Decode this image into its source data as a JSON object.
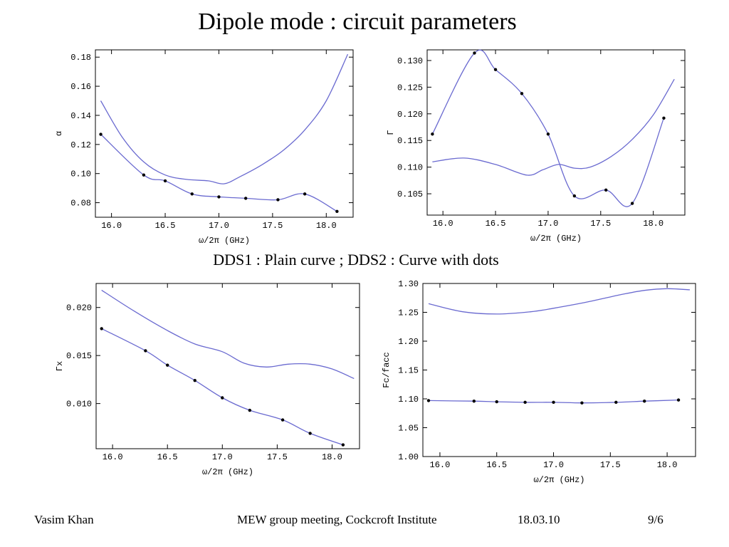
{
  "slide": {
    "title": "Dipole mode : circuit parameters",
    "caption": "DDS1 : Plain curve ; DDS2 : Curve with dots"
  },
  "footer": {
    "author": "Vasim Khan",
    "meeting": "MEW group meeting, Cockcroft Institute",
    "date": "18.03.10",
    "page": "9/6"
  },
  "colors": {
    "curve": "#6a6ad0",
    "dot": "#000000",
    "axis": "#000000"
  },
  "chart_data": [
    {
      "id": "alpha",
      "type": "line",
      "title": "",
      "xlabel": "ω/2π (GHz)",
      "ylabel": "α",
      "xlim": [
        15.85,
        18.25
      ],
      "ylim": [
        0.07,
        0.185
      ],
      "xticks": [
        16.0,
        16.5,
        17.0,
        17.5,
        18.0
      ],
      "xtick_labels": [
        "16.0",
        "16.5",
        "17.0",
        "17.5",
        "18.0"
      ],
      "yticks": [
        0.08,
        0.1,
        0.12,
        0.14,
        0.16,
        0.18
      ],
      "ytick_labels": [
        "0.08",
        "0.10",
        "0.12",
        "0.14",
        "0.16",
        "0.18"
      ],
      "series": [
        {
          "dots": false,
          "x": [
            15.9,
            16.1,
            16.3,
            16.5,
            16.7,
            16.9,
            17.05,
            17.2,
            17.4,
            17.6,
            17.8,
            18.0,
            18.2
          ],
          "y": [
            0.15,
            0.125,
            0.108,
            0.099,
            0.096,
            0.095,
            0.093,
            0.098,
            0.106,
            0.116,
            0.13,
            0.15,
            0.182
          ]
        },
        {
          "dots": true,
          "x": [
            15.9,
            16.3,
            16.5,
            16.75,
            17.0,
            17.25,
            17.55,
            17.8,
            18.1
          ],
          "y": [
            0.127,
            0.099,
            0.095,
            0.086,
            0.084,
            0.083,
            0.082,
            0.086,
            0.074
          ]
        }
      ]
    },
    {
      "id": "gamma",
      "type": "line",
      "title": "",
      "xlabel": "ω/2π (GHz)",
      "ylabel": "Γ",
      "xlim": [
        15.85,
        18.3
      ],
      "ylim": [
        0.101,
        0.132
      ],
      "xticks": [
        16.0,
        16.5,
        17.0,
        17.5,
        18.0
      ],
      "xtick_labels": [
        "16.0",
        "16.5",
        "17.0",
        "17.5",
        "18.0"
      ],
      "yticks": [
        0.105,
        0.11,
        0.115,
        0.12,
        0.125,
        0.13
      ],
      "ytick_labels": [
        "0.105",
        "0.110",
        "0.115",
        "0.120",
        "0.125",
        "0.130"
      ],
      "series": [
        {
          "dots": false,
          "x": [
            15.9,
            16.2,
            16.5,
            16.8,
            16.95,
            17.1,
            17.25,
            17.4,
            17.6,
            17.8,
            18.0,
            18.2
          ],
          "y": [
            0.111,
            0.1117,
            0.1105,
            0.1085,
            0.1095,
            0.1105,
            0.1098,
            0.11,
            0.112,
            0.1152,
            0.1198,
            0.1265
          ]
        },
        {
          "dots": true,
          "x": [
            15.9,
            16.3,
            16.5,
            16.75,
            17.0,
            17.25,
            17.55,
            17.8,
            18.1
          ],
          "y": [
            0.1162,
            0.1314,
            0.1283,
            0.1238,
            0.1162,
            0.1046,
            0.1057,
            0.1032,
            0.1192
          ]
        }
      ]
    },
    {
      "id": "gammax",
      "type": "line",
      "title": "",
      "xlabel": "ω/2π (GHz)",
      "ylabel": "Γx",
      "xlim": [
        15.85,
        18.25
      ],
      "ylim": [
        0.0053,
        0.0225
      ],
      "xticks": [
        16.0,
        16.5,
        17.0,
        17.5,
        18.0
      ],
      "xtick_labels": [
        "16.0",
        "16.5",
        "17.0",
        "17.5",
        "18.0"
      ],
      "yticks": [
        0.01,
        0.015,
        0.02
      ],
      "ytick_labels": [
        "0.010",
        "0.015",
        "0.020"
      ],
      "series": [
        {
          "dots": false,
          "x": [
            15.9,
            16.2,
            16.5,
            16.75,
            17.0,
            17.2,
            17.4,
            17.6,
            17.8,
            18.0,
            18.2
          ],
          "y": [
            0.0218,
            0.0196,
            0.0176,
            0.0162,
            0.0154,
            0.0142,
            0.0138,
            0.0141,
            0.0141,
            0.0136,
            0.0126
          ]
        },
        {
          "dots": true,
          "x": [
            15.9,
            16.3,
            16.5,
            16.75,
            17.0,
            17.25,
            17.55,
            17.8,
            18.1
          ],
          "y": [
            0.0178,
            0.0155,
            0.014,
            0.0124,
            0.0106,
            0.0093,
            0.0083,
            0.0069,
            0.0057
          ]
        }
      ]
    },
    {
      "id": "fc",
      "type": "line",
      "title": "",
      "xlabel": "ω/2π (GHz)",
      "ylabel": "Fc/facc",
      "xlim": [
        15.85,
        18.25
      ],
      "ylim": [
        1.0,
        1.3
      ],
      "xticks": [
        16.0,
        16.5,
        17.0,
        17.5,
        18.0
      ],
      "xtick_labels": [
        "16.0",
        "16.5",
        "17.0",
        "17.5",
        "18.0"
      ],
      "yticks": [
        1.0,
        1.05,
        1.1,
        1.15,
        1.2,
        1.25,
        1.3
      ],
      "ytick_labels": [
        "1.00",
        "1.05",
        "1.10",
        "1.15",
        "1.20",
        "1.25",
        "1.30"
      ],
      "series": [
        {
          "dots": false,
          "x": [
            15.9,
            16.2,
            16.5,
            16.8,
            17.0,
            17.3,
            17.6,
            17.8,
            18.0,
            18.2
          ],
          "y": [
            1.265,
            1.251,
            1.247,
            1.251,
            1.257,
            1.268,
            1.281,
            1.288,
            1.291,
            1.289
          ]
        },
        {
          "dots": true,
          "x": [
            15.9,
            16.3,
            16.5,
            16.75,
            17.0,
            17.25,
            17.55,
            17.8,
            18.1
          ],
          "y": [
            1.097,
            1.096,
            1.095,
            1.094,
            1.094,
            1.093,
            1.094,
            1.096,
            1.098
          ]
        }
      ]
    }
  ]
}
